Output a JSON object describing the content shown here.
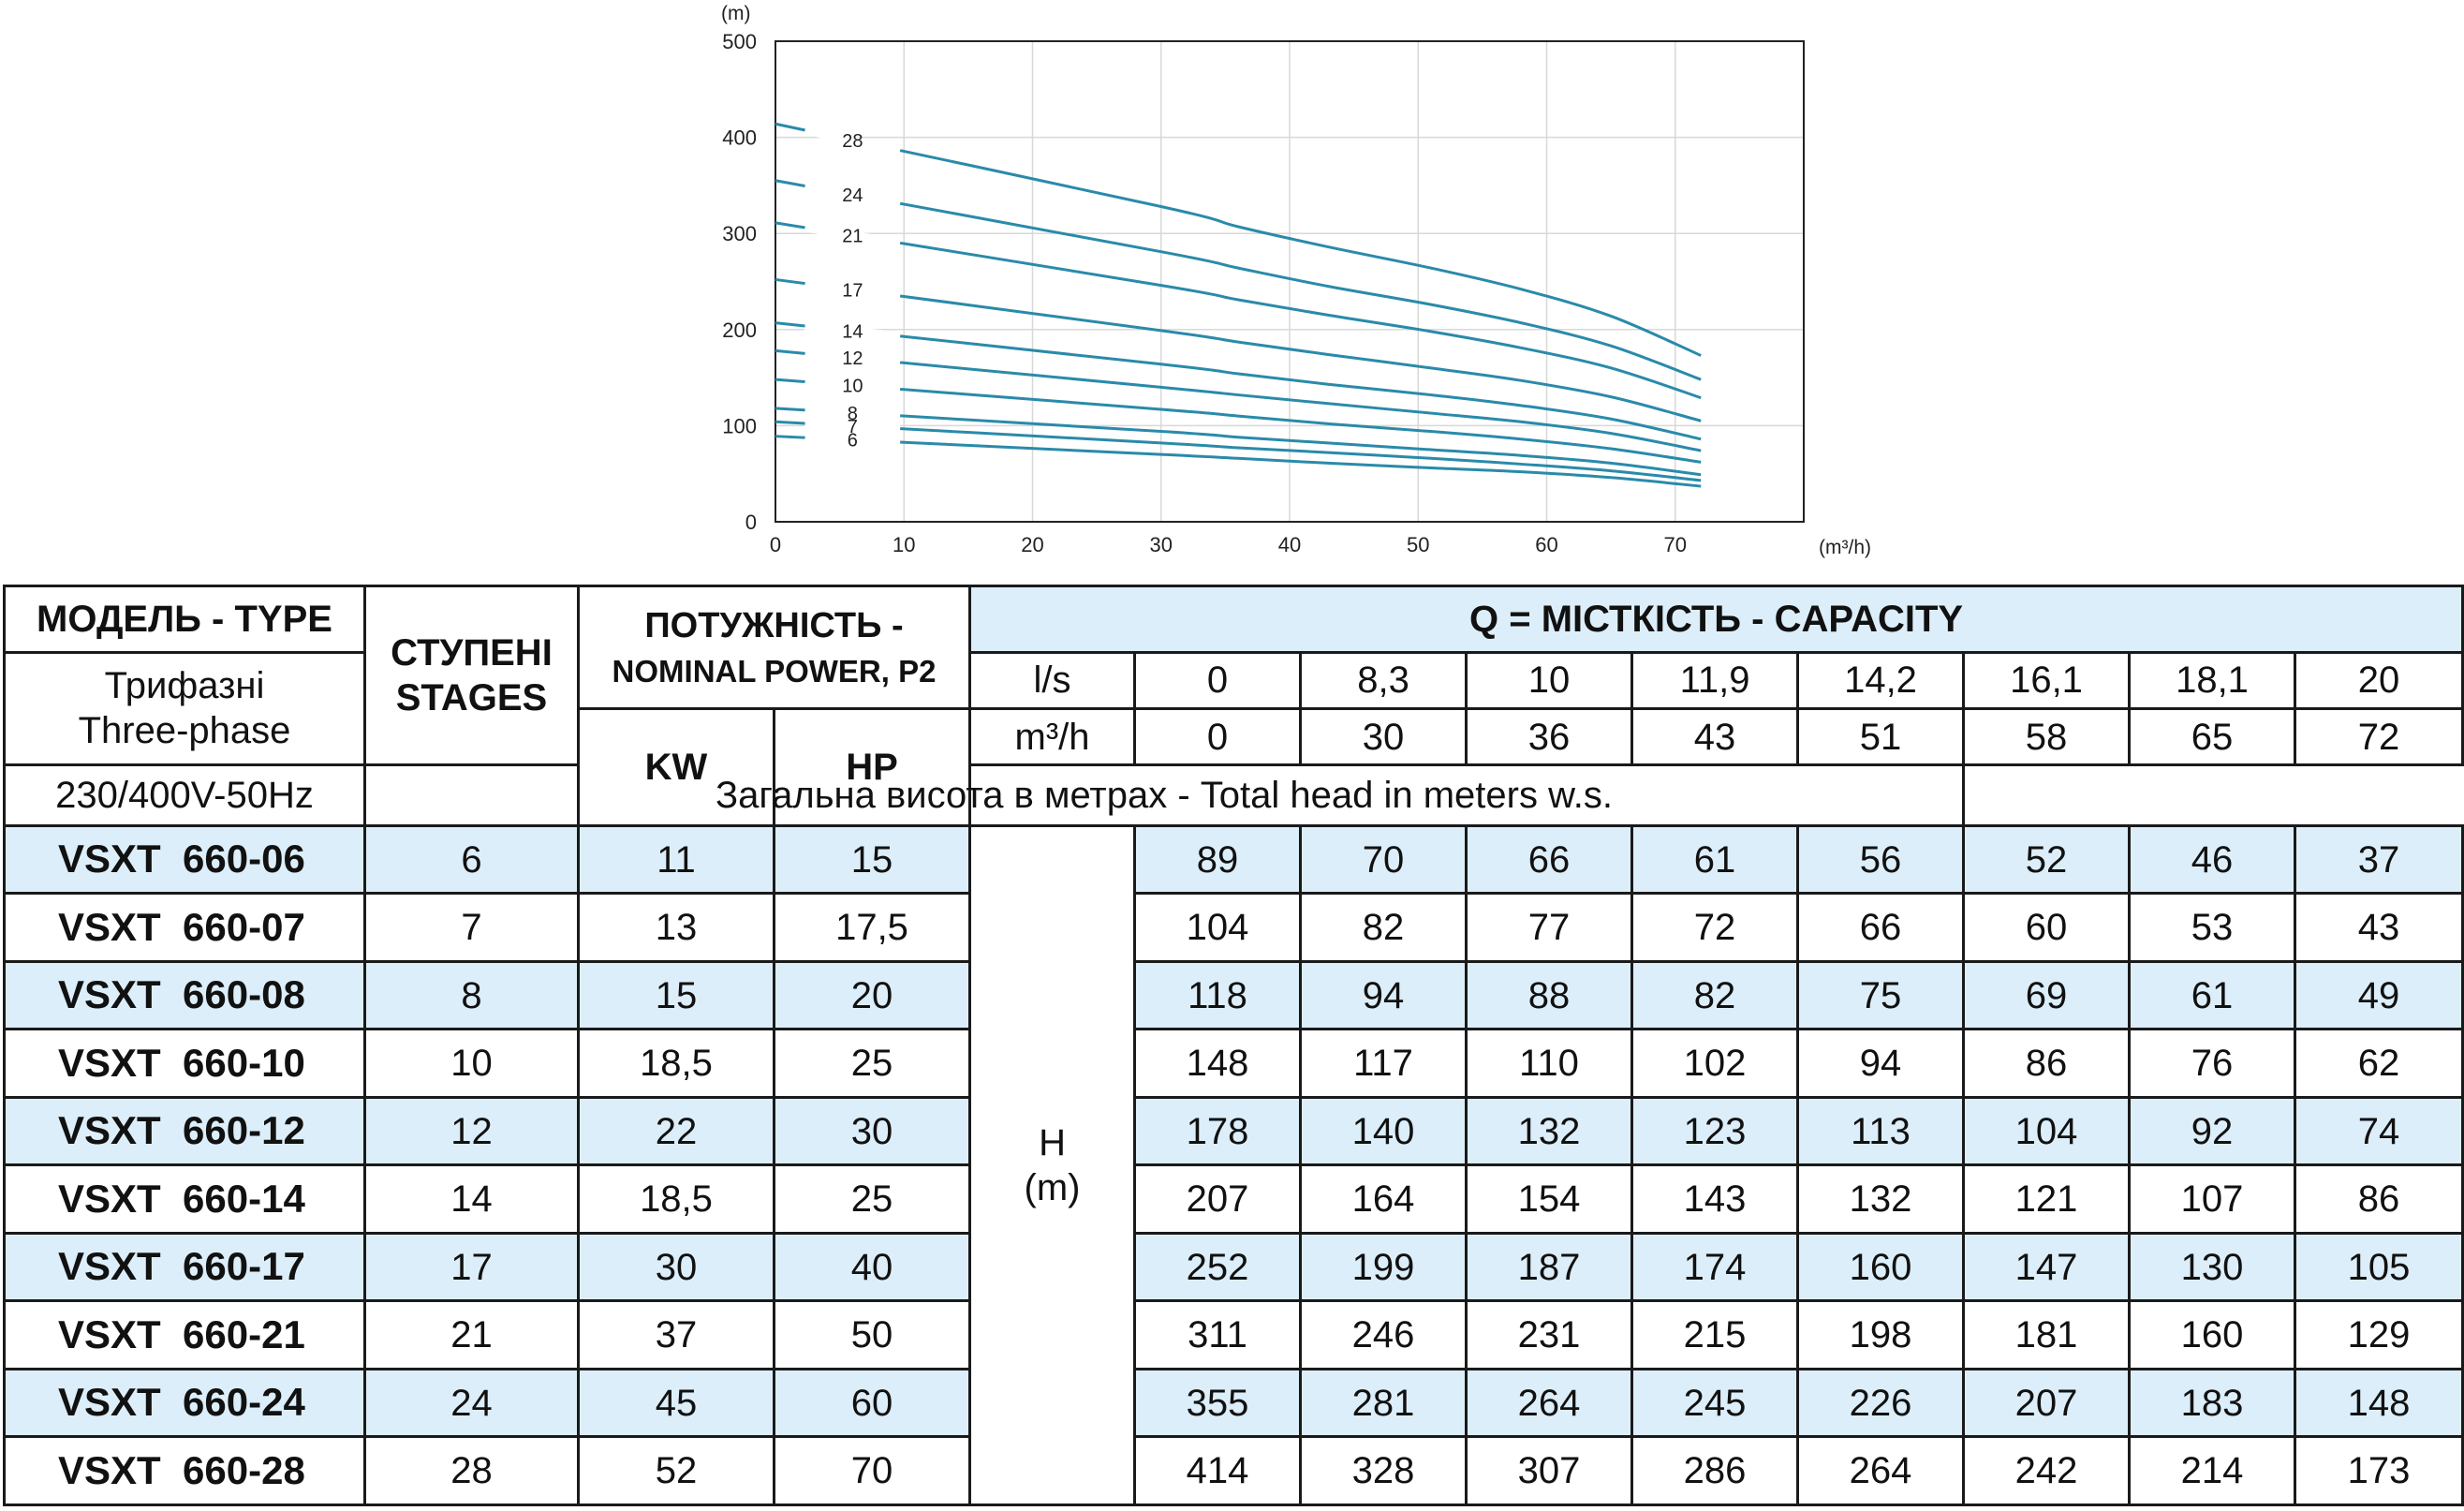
{
  "chart_data": {
    "type": "line",
    "x_unit": "(m³/h)",
    "y_unit": "(m)",
    "xlim": [
      0,
      80
    ],
    "ylim": [
      0,
      500
    ],
    "x_ticks": [
      0,
      10,
      20,
      30,
      40,
      50,
      60,
      70
    ],
    "y_ticks": [
      0,
      100,
      200,
      300,
      400,
      500
    ],
    "grid": true,
    "x": [
      0,
      30,
      36,
      43,
      51,
      58,
      65,
      72
    ],
    "series": [
      {
        "name": "28",
        "values": [
          414,
          328,
          307,
          286,
          264,
          242,
          214,
          173
        ]
      },
      {
        "name": "24",
        "values": [
          355,
          281,
          264,
          245,
          226,
          207,
          183,
          148
        ]
      },
      {
        "name": "21",
        "values": [
          311,
          246,
          231,
          215,
          198,
          181,
          160,
          129
        ]
      },
      {
        "name": "17",
        "values": [
          252,
          199,
          187,
          174,
          160,
          147,
          130,
          105
        ]
      },
      {
        "name": "14",
        "values": [
          207,
          164,
          154,
          143,
          132,
          121,
          107,
          86
        ]
      },
      {
        "name": "12",
        "values": [
          178,
          140,
          132,
          123,
          113,
          104,
          92,
          74
        ]
      },
      {
        "name": "10",
        "values": [
          148,
          117,
          110,
          102,
          94,
          86,
          76,
          62
        ]
      },
      {
        "name": "8",
        "values": [
          118,
          94,
          88,
          82,
          75,
          69,
          61,
          49
        ]
      },
      {
        "name": "7",
        "values": [
          104,
          82,
          77,
          72,
          66,
          60,
          53,
          43
        ]
      },
      {
        "name": "6",
        "values": [
          89,
          70,
          66,
          61,
          56,
          52,
          46,
          37
        ]
      }
    ],
    "line_color": "#2a8aaa",
    "grid_color": "#d8d8d8"
  },
  "table": {
    "model_header": "МОДЕЛЬ - TYPE",
    "phase_ua": "Трифазні",
    "phase_en": "Three-phase",
    "voltage": "230/400V-50Hz",
    "stages_ua": "СТУПЕНІ",
    "stages_en": "STAGES",
    "power_ua": "ПОТУЖНІСТЬ -",
    "power_en": "NOMINAL POWER, P2",
    "kw_label": "KW",
    "hp_label": "HP",
    "capacity_header": "Q = МІСТКІСТЬ - CAPACITY",
    "ls_label": "l/s",
    "m3h_label": "m³/h",
    "ls_values": [
      "0",
      "8,3",
      "10",
      "11,9",
      "14,2",
      "16,1",
      "18,1",
      "20"
    ],
    "m3h_values": [
      "0",
      "30",
      "36",
      "43",
      "51",
      "58",
      "65",
      "72"
    ],
    "total_head": "Загальна висота в метрах - Total head in meters w.s.",
    "h_label": "H",
    "h_unit": "(m)",
    "rows": [
      {
        "model": "VSXT  660-06",
        "stages": "6",
        "kw": "11",
        "hp": "15",
        "heads": [
          "89",
          "70",
          "66",
          "61",
          "56",
          "52",
          "46",
          "37"
        ]
      },
      {
        "model": "VSXT  660-07",
        "stages": "7",
        "kw": "13",
        "hp": "17,5",
        "heads": [
          "104",
          "82",
          "77",
          "72",
          "66",
          "60",
          "53",
          "43"
        ]
      },
      {
        "model": "VSXT  660-08",
        "stages": "8",
        "kw": "15",
        "hp": "20",
        "heads": [
          "118",
          "94",
          "88",
          "82",
          "75",
          "69",
          "61",
          "49"
        ]
      },
      {
        "model": "VSXT  660-10",
        "stages": "10",
        "kw": "18,5",
        "hp": "25",
        "heads": [
          "148",
          "117",
          "110",
          "102",
          "94",
          "86",
          "76",
          "62"
        ]
      },
      {
        "model": "VSXT  660-12",
        "stages": "12",
        "kw": "22",
        "hp": "30",
        "heads": [
          "178",
          "140",
          "132",
          "123",
          "113",
          "104",
          "92",
          "74"
        ]
      },
      {
        "model": "VSXT  660-14",
        "stages": "14",
        "kw": "18,5",
        "hp": "25",
        "heads": [
          "207",
          "164",
          "154",
          "143",
          "132",
          "121",
          "107",
          "86"
        ]
      },
      {
        "model": "VSXT  660-17",
        "stages": "17",
        "kw": "30",
        "hp": "40",
        "heads": [
          "252",
          "199",
          "187",
          "174",
          "160",
          "147",
          "130",
          "105"
        ]
      },
      {
        "model": "VSXT  660-21",
        "stages": "21",
        "kw": "37",
        "hp": "50",
        "heads": [
          "311",
          "246",
          "231",
          "215",
          "198",
          "181",
          "160",
          "129"
        ]
      },
      {
        "model": "VSXT  660-24",
        "stages": "24",
        "kw": "45",
        "hp": "60",
        "heads": [
          "355",
          "281",
          "264",
          "245",
          "226",
          "207",
          "183",
          "148"
        ]
      },
      {
        "model": "VSXT  660-28",
        "stages": "28",
        "kw": "52",
        "hp": "70",
        "heads": [
          "414",
          "328",
          "307",
          "286",
          "264",
          "242",
          "214",
          "173"
        ]
      }
    ]
  }
}
